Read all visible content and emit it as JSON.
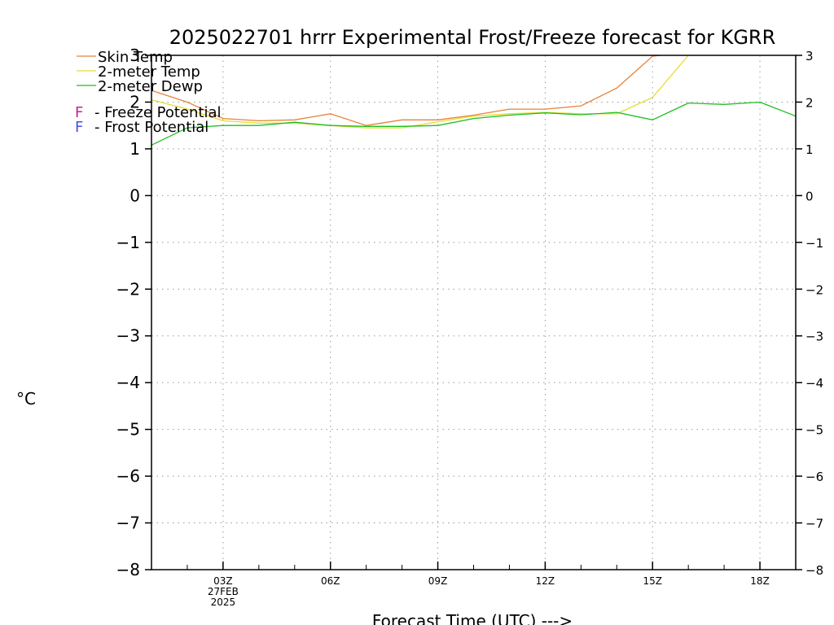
{
  "chart_data": {
    "type": "line",
    "title": "2025022701 hrrr Experimental Frost/Freeze forecast for KGRR",
    "ylabel": "°C",
    "xlabel": "Forecast Time (UTC) --->",
    "ylim": [
      -8,
      3
    ],
    "xlim": [
      1,
      19
    ],
    "grid": true,
    "y_ticks": [
      3,
      2,
      1,
      0,
      -1,
      -2,
      -3,
      -4,
      -5,
      -6,
      -7,
      -8
    ],
    "y_tick_labels": [
      "3",
      "2",
      "1",
      "0",
      "−1",
      "−2",
      "−3",
      "−4",
      "−5",
      "−6",
      "−7",
      "−8"
    ],
    "x_ticks": [
      {
        "hour": 3,
        "label": "03Z",
        "sub": [
          "27FEB",
          "2025"
        ]
      },
      {
        "hour": 6,
        "label": "06Z",
        "sub": []
      },
      {
        "hour": 9,
        "label": "09Z",
        "sub": []
      },
      {
        "hour": 12,
        "label": "12Z",
        "sub": []
      },
      {
        "hour": 15,
        "label": "15Z",
        "sub": []
      },
      {
        "hour": 18,
        "label": "18Z",
        "sub": []
      }
    ],
    "legend": [
      {
        "label": "Skin Temp",
        "color": "#e6823c",
        "style": "line"
      },
      {
        "label": "2-meter Temp",
        "color": "#e6dc32",
        "style": "line"
      },
      {
        "label": "2-meter Dewp",
        "color": "#1ebe1e",
        "style": "line"
      },
      {
        "label": "- Freeze Potential",
        "marker": "F",
        "color": "#c81e96",
        "style": "text"
      },
      {
        "label": "- Frost Potential",
        "marker": "F",
        "color": "#4650e6",
        "style": "text"
      }
    ],
    "series": [
      {
        "name": "Skin Temp",
        "color": "#e6823c",
        "x": [
          1,
          2,
          3,
          4,
          5,
          6,
          7,
          8,
          9,
          10,
          11,
          12,
          13,
          14,
          15,
          15.2
        ],
        "values": [
          2.25,
          2.0,
          1.65,
          1.6,
          1.62,
          1.75,
          1.5,
          1.62,
          1.62,
          1.72,
          1.85,
          1.85,
          1.92,
          2.3,
          2.98,
          3.0
        ]
      },
      {
        "name": "2-meter Temp",
        "color": "#e6dc32",
        "x": [
          1,
          2,
          3,
          4,
          5,
          6,
          7,
          8,
          9,
          10,
          11,
          12,
          13,
          14,
          15,
          16
        ],
        "values": [
          2.05,
          1.85,
          1.6,
          1.55,
          1.55,
          1.5,
          1.45,
          1.45,
          1.58,
          1.7,
          1.75,
          1.78,
          1.75,
          1.75,
          2.1,
          3.0
        ]
      },
      {
        "name": "2-meter Dewp",
        "color": "#1ebe1e",
        "x": [
          1,
          2,
          3,
          4,
          5,
          6,
          7,
          8,
          9,
          10,
          11,
          12,
          13,
          14,
          15,
          16,
          17,
          18,
          19
        ],
        "values": [
          1.08,
          1.45,
          1.5,
          1.5,
          1.57,
          1.5,
          1.48,
          1.48,
          1.5,
          1.65,
          1.72,
          1.77,
          1.73,
          1.78,
          1.62,
          1.98,
          1.95,
          2.0,
          1.7
        ]
      }
    ]
  }
}
